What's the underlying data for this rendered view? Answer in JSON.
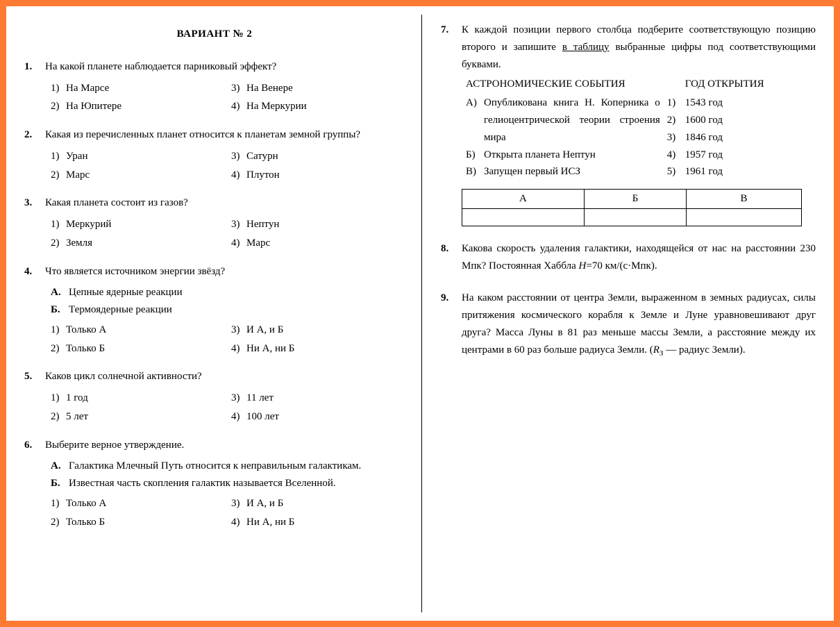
{
  "title": "ВАРИАНТ № 2",
  "left": {
    "q1": {
      "num": "1.",
      "text": "На какой планете наблюдается парниковый эффект?",
      "o1m": "1)",
      "o1": "На Марсе",
      "o2m": "3)",
      "o2": "На Венере",
      "o3m": "2)",
      "o3": "На Юпитере",
      "o4m": "4)",
      "o4": "На Меркурии"
    },
    "q2": {
      "num": "2.",
      "text": "Какая из перечисленных планет относится к планетам земной группы?",
      "o1m": "1)",
      "o1": "Уран",
      "o2m": "3)",
      "o2": "Сатурн",
      "o3m": "2)",
      "o3": "Марс",
      "o4m": "4)",
      "o4": "Плутон"
    },
    "q3": {
      "num": "3.",
      "text": "Какая планета состоит из газов?",
      "o1m": "1)",
      "o1": "Меркурий",
      "o2m": "3)",
      "o2": "Нептун",
      "o3m": "2)",
      "o3": "Земля",
      "o4m": "4)",
      "o4": "Марс"
    },
    "q4": {
      "num": "4.",
      "text": "Что является источником энергии звёзд?",
      "sAm": "А.",
      "sA": "Цепные ядерные реакции",
      "sBm": "Б.",
      "sB": "Термоядерные реакции",
      "o1m": "1)",
      "o1": "Только А",
      "o2m": "3)",
      "o2": "И А, и Б",
      "o3m": "2)",
      "o3": "Только Б",
      "o4m": "4)",
      "o4": "Ни А, ни Б"
    },
    "q5": {
      "num": "5.",
      "text": "Каков цикл солнечной активности?",
      "o1m": "1)",
      "o1": "1 год",
      "o2m": "3)",
      "o2": "11 лет",
      "o3m": "2)",
      "o3": "5 лет",
      "o4m": "4)",
      "o4": "100 лет"
    },
    "q6": {
      "num": "6.",
      "text": "Выберите верное утверждение.",
      "sAm": "А.",
      "sA": "Галактика Млечный Путь относится к неправильным галактикам.",
      "sBm": "Б.",
      "sB": "Известная часть скопления галактик называется Вселенной.",
      "o1m": "1)",
      "o1": "Только А",
      "o2m": "3)",
      "o2": "И А, и Б",
      "o3m": "2)",
      "o3": "Только Б",
      "o4m": "4)",
      "o4": "Ни А, ни Б"
    }
  },
  "right": {
    "q7": {
      "num": "7.",
      "text_pre": "К каждой позиции первого столбца подберите соответствующую позицию второго и запишите ",
      "text_u": "в таблицу",
      "text_post": " выбранные цифры под соответствующими буквами.",
      "head1": "АСТРОНОМИЧЕСКИЕ СОБЫТИЯ",
      "head2": "ГОД ОТКРЫТИЯ",
      "eAm": "А)",
      "eA": "Опубликована книга Н. Коперника о гелиоцентрической теории строения мира",
      "eBm": "Б)",
      "eB": "Открыта планета Нептун",
      "eCm": "В)",
      "eC": "Запущен первый ИСЗ",
      "y1m": "1)",
      "y1": "1543 год",
      "y2m": "2)",
      "y2": "1600 год",
      "y3m": "3)",
      "y3": "1846 год",
      "y4m": "4)",
      "y4": "1957 год",
      "y5m": "5)",
      "y5": "1961 год",
      "thA": "А",
      "thB": "Б",
      "thC": "В"
    },
    "q8": {
      "num": "8.",
      "text_pre": "Какова скорость удаления галактики, находящейся от нас на расстоянии 230 Мпк? Постоянная Хаббла ",
      "H": "H",
      "text_post": "=70 км/(с·Мпк)."
    },
    "q9": {
      "num": "9.",
      "text_pre": "На каком расстоянии от центра Земли, выраженном в земных радиусах, силы притяжения космического корабля к Земле и Луне уравновешивают друг друга? Масса Луны в 81 раз меньше массы Земли, а расстояние между их центрами в 60 раз больше радиуса Земли. (",
      "R": "R",
      "sub": "З",
      "text_post": " — радиус Земли)."
    }
  }
}
